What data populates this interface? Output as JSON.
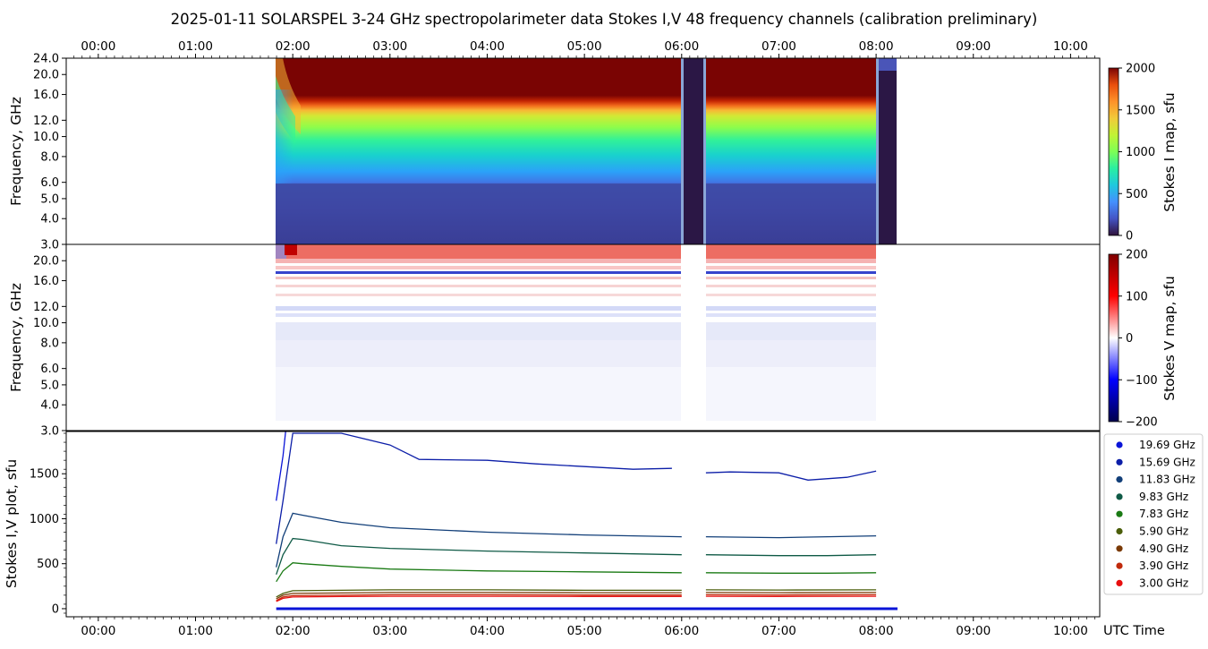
{
  "figure_title": "2025-01-11  SOLARSPEL  3-24 GHz spectropolarimeter data   Stokes I,V   48 frequency channels   (calibration preliminary)",
  "utc_label": "UTC Time",
  "time_ticks": [
    "00:00",
    "01:00",
    "02:00",
    "03:00",
    "04:00",
    "05:00",
    "06:00",
    "07:00",
    "08:00",
    "09:00",
    "10:00"
  ],
  "colors": {
    "background": "#ffffff",
    "stokes_i_saturated": "#7a0403",
    "gap_dark": "#2b1745",
    "v_positive": "#c80000",
    "v_negative": "#0000c8"
  },
  "chart_data": [
    {
      "type": "heatmap",
      "name": "stokes_i_map",
      "ylabel": "Frequency, GHz",
      "yticks": [
        "3.0",
        "4.0",
        "5.0",
        "6.0",
        "8.0",
        "10.0",
        "12.0",
        "16.0",
        "20.0",
        "24.0"
      ],
      "y_scale": "log",
      "xlim_hours": [
        -0.33,
        10.3
      ],
      "data_start_hour": 1.83,
      "data_end_hour": 8.22,
      "gaps_hours": [
        [
          6.0,
          6.25
        ],
        [
          8.03,
          8.22
        ]
      ],
      "colorbar": {
        "label": "Stokes I map, sfu",
        "ticks": [
          "0",
          "500",
          "1000",
          "1500",
          "2000"
        ],
        "range": [
          0,
          2000
        ],
        "colormap": "turbo"
      },
      "grid": false
    },
    {
      "type": "heatmap",
      "name": "stokes_v_map",
      "ylabel": "Frequency, GHz",
      "yticks": [
        "3.0",
        "4.0",
        "5.0",
        "6.0",
        "8.0",
        "10.0",
        "12.0",
        "16.0",
        "20.0"
      ],
      "y_scale": "log",
      "xlim_hours": [
        -0.33,
        10.3
      ],
      "data_start_hour": 1.83,
      "data_end_hour": 8.22,
      "colorbar": {
        "label": "Stokes V map, sfu",
        "ticks": [
          "200",
          "100",
          "0",
          "−100",
          "−200"
        ],
        "range": [
          -200,
          200
        ],
        "colormap": "seismic"
      },
      "grid": false
    },
    {
      "type": "line",
      "name": "stokes_plot",
      "ylabel": "Stokes I,V plot, sfu",
      "yticks": [
        "0",
        "500",
        "1000",
        "1500"
      ],
      "ylim": [
        -90,
        1970
      ],
      "xlim_hours": [
        -0.33,
        10.3
      ],
      "legend_position": "outside-right",
      "gap_hours": [
        6.0,
        6.25
      ],
      "end_hour": 8.0,
      "series": [
        {
          "name": "19.69 GHz",
          "color": "#0a14d8",
          "x": [
            1.83,
            1.9,
            1.95,
            2.0
          ],
          "y": [
            1200,
            1700,
            2200,
            2600
          ]
        },
        {
          "name": "15.69 GHz",
          "color": "#0c1ea8",
          "x": [
            1.83,
            1.9,
            2.0,
            2.5,
            3.0,
            3.3,
            4.0,
            4.5,
            5.0,
            5.5,
            5.9,
            6.25,
            6.5,
            7.0,
            7.3,
            7.7,
            8.0
          ],
          "y": [
            720,
            1200,
            1950,
            1950,
            1820,
            1660,
            1650,
            1610,
            1580,
            1550,
            1560,
            1510,
            1520,
            1510,
            1430,
            1460,
            1530
          ]
        },
        {
          "name": "11.83 GHz",
          "color": "#123f79",
          "x": [
            1.83,
            1.9,
            2.0,
            2.1,
            2.5,
            3.0,
            4.0,
            5.0,
            6.0,
            6.25,
            7.0,
            7.5,
            8.0
          ],
          "y": [
            460,
            800,
            1060,
            1040,
            960,
            900,
            850,
            820,
            800,
            800,
            790,
            800,
            810
          ]
        },
        {
          "name": "9.83 GHz",
          "color": "#0f5a46",
          "x": [
            1.83,
            1.9,
            2.0,
            2.1,
            2.5,
            3.0,
            4.0,
            5.0,
            6.0,
            6.25,
            7.0,
            7.5,
            8.0
          ],
          "y": [
            380,
            600,
            780,
            770,
            700,
            670,
            640,
            620,
            600,
            600,
            590,
            590,
            600
          ]
        },
        {
          "name": "7.83 GHz",
          "color": "#1a7a14",
          "x": [
            1.83,
            1.9,
            2.0,
            2.1,
            2.5,
            3.0,
            4.0,
            5.0,
            6.0,
            6.25,
            7.0,
            7.5,
            8.0
          ],
          "y": [
            300,
            420,
            510,
            500,
            470,
            440,
            420,
            410,
            400,
            400,
            395,
            395,
            400
          ]
        },
        {
          "name": "5.90 GHz",
          "color": "#4b5e0a",
          "x": [
            1.83,
            1.9,
            2.0,
            2.5,
            3.0,
            4.0,
            5.0,
            6.0,
            6.25,
            7.0,
            8.0
          ],
          "y": [
            130,
            170,
            200,
            205,
            210,
            210,
            205,
            205,
            210,
            208,
            210
          ]
        },
        {
          "name": "4.90 GHz",
          "color": "#7a3a06",
          "x": [
            1.83,
            1.9,
            2.0,
            2.5,
            3.0,
            4.0,
            5.0,
            6.0,
            6.25,
            7.0,
            8.0
          ],
          "y": [
            110,
            150,
            170,
            175,
            180,
            180,
            178,
            178,
            180,
            178,
            180
          ]
        },
        {
          "name": "3.90 GHz",
          "color": "#c02a0c",
          "x": [
            1.83,
            1.9,
            2.0,
            2.5,
            3.0,
            4.0,
            5.0,
            6.0,
            6.25,
            7.0,
            8.0
          ],
          "y": [
            90,
            130,
            145,
            150,
            155,
            155,
            152,
            152,
            155,
            153,
            155
          ]
        },
        {
          "name": "3.00 GHz",
          "color": "#e80e0e",
          "x": [
            1.83,
            1.9,
            2.0,
            2.5,
            3.0,
            4.0,
            5.0,
            6.0,
            6.25,
            7.0,
            8.0
          ],
          "y": [
            80,
            115,
            130,
            135,
            138,
            138,
            136,
            136,
            138,
            136,
            138
          ]
        }
      ],
      "v_series_near_zero": {
        "color": "#0a14d8",
        "x": [
          1.83,
          8.22
        ],
        "y": [
          0,
          0
        ]
      }
    }
  ]
}
